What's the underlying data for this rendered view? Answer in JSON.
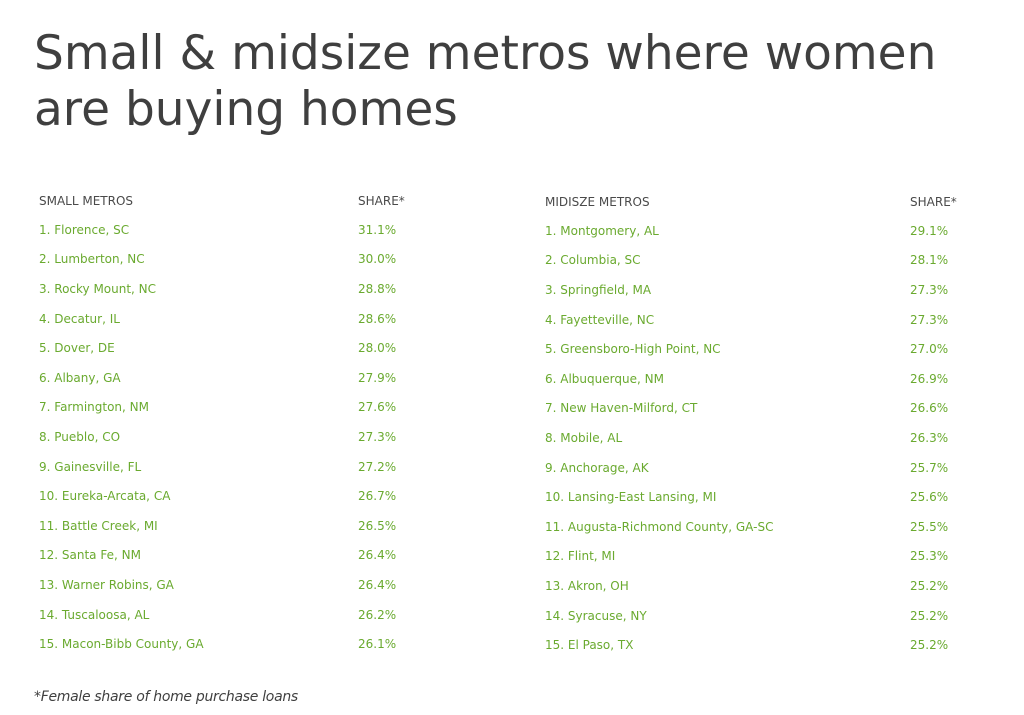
{
  "title": "Small & midsize metros where women are buying homes",
  "small_table": {
    "header_name": "SMALL METROS",
    "header_share": "SHARE*",
    "rows": [
      {
        "name": "1. Florence, SC",
        "share": "31.1%"
      },
      {
        "name": "2. Lumberton, NC",
        "share": "30.0%"
      },
      {
        "name": "3. Rocky Mount, NC",
        "share": "28.8%"
      },
      {
        "name": "4. Decatur, IL",
        "share": "28.6%"
      },
      {
        "name": "5. Dover, DE",
        "share": "28.0%"
      },
      {
        "name": "6. Albany, GA",
        "share": "27.9%"
      },
      {
        "name": "7. Farmington, NM",
        "share": "27.6%"
      },
      {
        "name": "8. Pueblo, CO",
        "share": "27.3%"
      },
      {
        "name": "9. Gainesville, FL",
        "share": "27.2%"
      },
      {
        "name": "10. Eureka-Arcata, CA",
        "share": "26.7%"
      },
      {
        "name": "11. Battle Creek, MI",
        "share": "26.5%"
      },
      {
        "name": "12. Santa Fe, NM",
        "share": "26.4%"
      },
      {
        "name": "13. Warner Robins, GA",
        "share": "26.4%"
      },
      {
        "name": "14. Tuscaloosa, AL",
        "share": "26.2%"
      },
      {
        "name": "15. Macon-Bibb County, GA",
        "share": "26.1%"
      }
    ]
  },
  "midsize_table": {
    "header_name": "MIDISZE METROS",
    "header_share": "SHARE*",
    "rows": [
      {
        "name": "1. Montgomery, AL",
        "share": "29.1%"
      },
      {
        "name": "2. Columbia, SC",
        "share": "28.1%"
      },
      {
        "name": "3. Springfield, MA",
        "share": "27.3%"
      },
      {
        "name": "4. Fayetteville, NC",
        "share": "27.3%"
      },
      {
        "name": "5. Greensboro-High Point, NC",
        "share": "27.0%"
      },
      {
        "name": "6. Albuquerque, NM",
        "share": "26.9%"
      },
      {
        "name": "7. New Haven-Milford, CT",
        "share": "26.6%"
      },
      {
        "name": "8. Mobile, AL",
        "share": "26.3%"
      },
      {
        "name": "9. Anchorage, AK",
        "share": "25.7%"
      },
      {
        "name": "10. Lansing-East Lansing, MI",
        "share": "25.6%"
      },
      {
        "name": "11. Augusta-Richmond County, GA-SC",
        "share": "25.5%"
      },
      {
        "name": "12. Flint, MI",
        "share": "25.3%"
      },
      {
        "name": "13. Akron, OH",
        "share": "25.2%"
      },
      {
        "name": "14. Syracuse, NY",
        "share": "25.2%"
      },
      {
        "name": "15. El Paso, TX",
        "share": "25.2%"
      }
    ]
  },
  "footnote": "*Female share of home purchase loans",
  "colors": {
    "title": "#3f3f3f",
    "header": "#4a4a4a",
    "row_text": "#6aaa2f"
  }
}
